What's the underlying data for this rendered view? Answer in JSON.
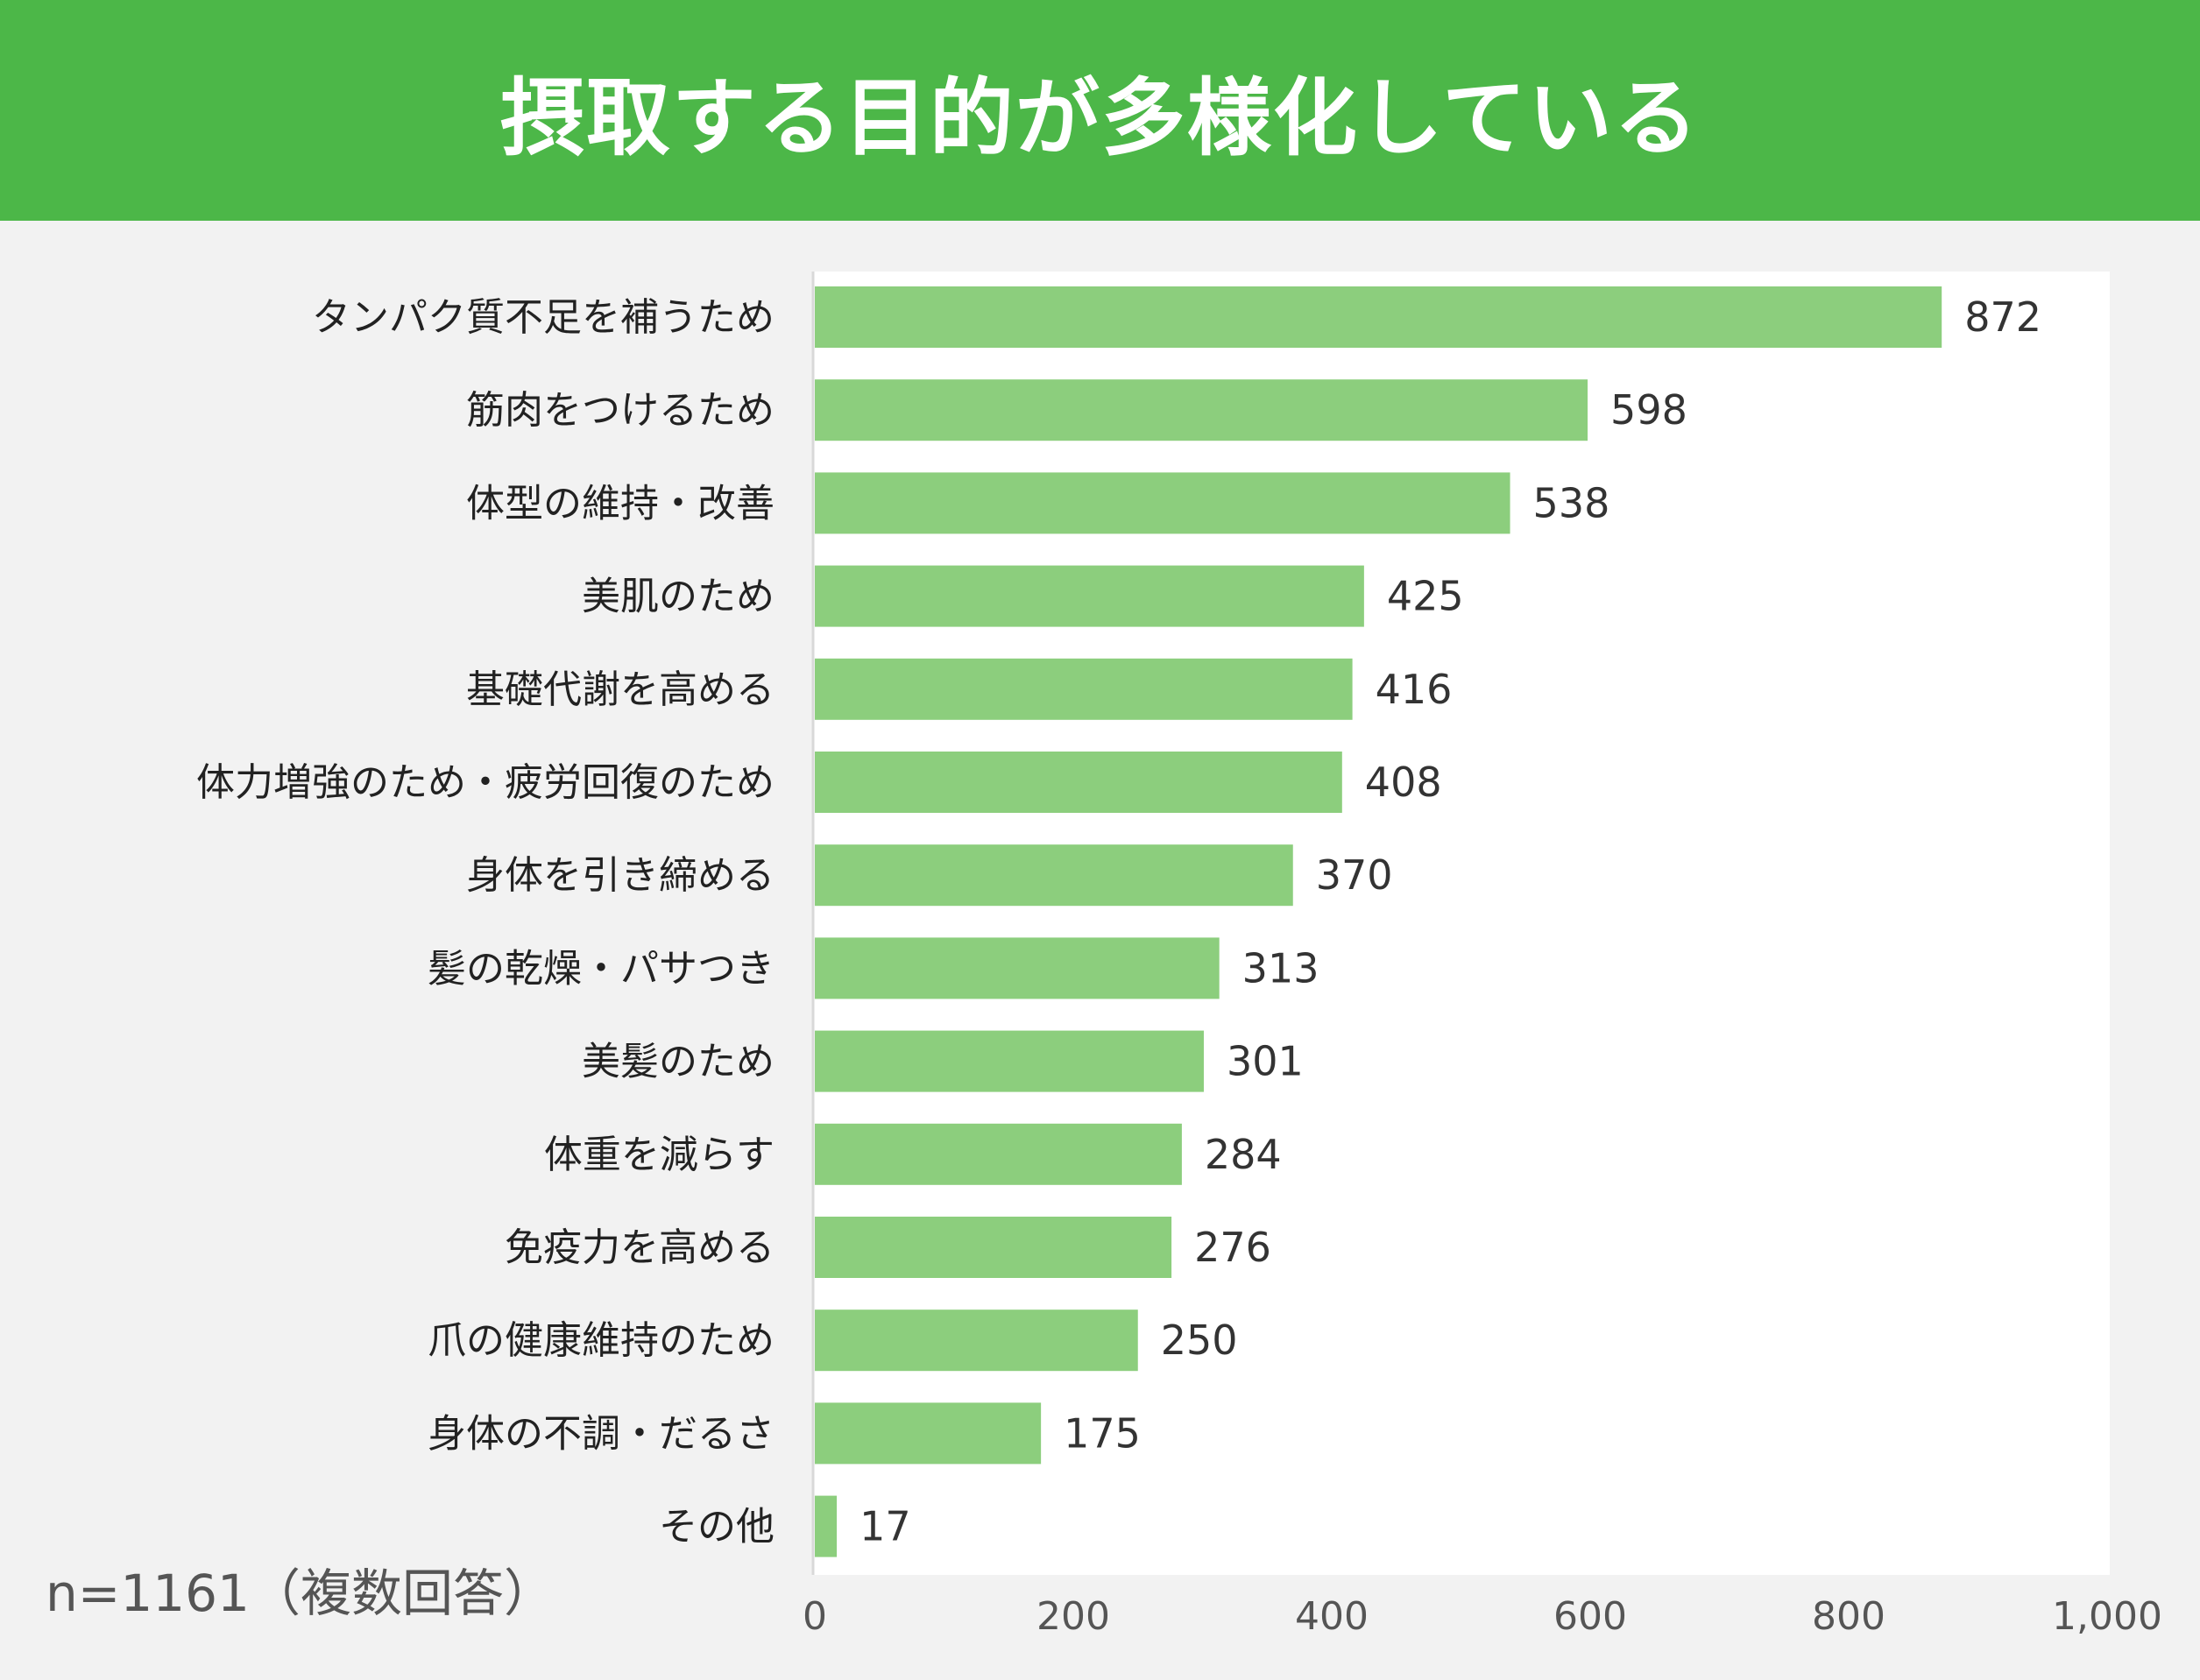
{
  "header": {
    "title": "摂取する目的が多様化している"
  },
  "note": {
    "sample": "n=1161（複数回答）"
  },
  "colors": {
    "header_bg": "#4cb748",
    "bar": "#8cce7d",
    "plot_bg": "#ffffff",
    "page_bg": "#f2f2f2"
  },
  "chart_data": {
    "type": "bar",
    "orientation": "horizontal",
    "categories": [
      "タンパク質不足を補うため",
      "筋肉をつけるため",
      "体型の維持・改善",
      "美肌のため",
      "基礎代謝を高める",
      "体力増強のため・疲労回復のため",
      "身体を引き締める",
      "髪の乾燥・パサつき",
      "美髪のため",
      "体重を減らす",
      "免疫力を高める",
      "爪の健康維持のため",
      "身体の不調・だるさ",
      "その他"
    ],
    "values": [
      872,
      598,
      538,
      425,
      416,
      408,
      370,
      313,
      301,
      284,
      276,
      250,
      175,
      17
    ],
    "value_labels": [
      "872",
      "598",
      "538",
      "425",
      "416",
      "408",
      "370",
      "313",
      "301",
      "284",
      "276",
      "250",
      "175",
      "17"
    ],
    "xlim": [
      0,
      1000
    ],
    "xticks": [
      0,
      200,
      400,
      600,
      800,
      1000
    ],
    "xtick_labels": [
      "0",
      "200",
      "400",
      "600",
      "800",
      "1,000"
    ],
    "grid": false,
    "legend": "none"
  }
}
